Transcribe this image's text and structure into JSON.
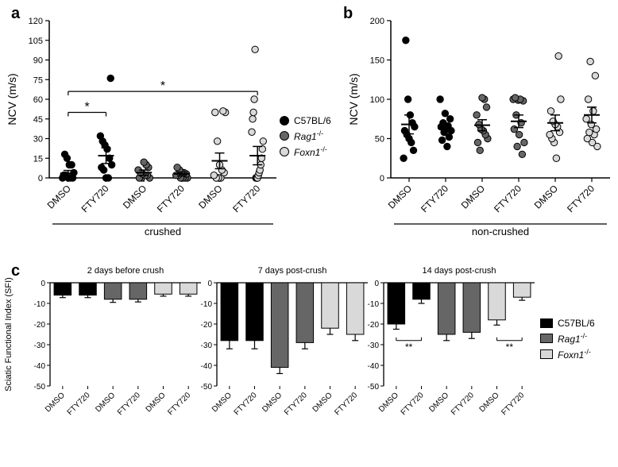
{
  "colors": {
    "axis": "#000000",
    "tick": "#000000",
    "bg": "#ffffff",
    "errorbar": "#000000",
    "sig_line": "#000000"
  },
  "genotype_fill": {
    "C57BL/6": "#000000",
    "Rag1-/-": "#666666",
    "Foxn1-/-": "#d9d9d9"
  },
  "genotype_stroke": {
    "C57BL/6": "#000000",
    "Rag1-/-": "#000000",
    "Foxn1-/-": "#000000"
  },
  "panel_a": {
    "label": "a",
    "type": "scatter",
    "title": "crushed",
    "ylabel": "NCV (m/s)",
    "ylim": [
      0,
      120
    ],
    "ytick_step": 15,
    "x_categories": [
      "DMSO",
      "FTY720",
      "DMSO",
      "FTY720",
      "DMSO",
      "FTY720"
    ],
    "x_genotypes": [
      "C57BL/6",
      "C57BL/6",
      "Rag1-/-",
      "Rag1-/-",
      "Foxn1-/-",
      "Foxn1-/-"
    ],
    "marker_radius": 4.2,
    "jitter_width": 0.3,
    "legend": [
      {
        "label": "C57BL/6",
        "fill_key": "C57BL/6"
      },
      {
        "label": "<i>Rag1</i><sup>-/-</sup>",
        "fill_key": "Rag1-/-"
      },
      {
        "label": "<i>Foxn1</i><sup>-/-</sup>",
        "fill_key": "Foxn1-/-"
      }
    ],
    "series": [
      {
        "group": 0,
        "points": [
          0,
          0,
          0,
          0,
          2,
          2,
          4,
          10,
          10,
          15,
          18
        ],
        "mean": 3.5,
        "sem": 2.2
      },
      {
        "group": 1,
        "points": [
          0,
          0,
          6,
          8,
          10,
          15,
          22,
          25,
          28,
          32,
          76
        ],
        "mean": 17,
        "sem": 6
      },
      {
        "group": 2,
        "points": [
          0,
          0,
          0,
          2,
          2,
          3,
          4,
          6,
          8,
          10,
          12
        ],
        "mean": 4,
        "sem": 2
      },
      {
        "group": 3,
        "points": [
          0,
          0,
          0,
          0,
          2,
          2,
          3,
          4,
          4,
          6,
          8
        ],
        "mean": 3,
        "sem": 1.5
      },
      {
        "group": 4,
        "points": [
          0,
          0,
          0,
          2,
          4,
          6,
          10,
          28,
          50,
          50,
          51
        ],
        "mean": 13,
        "sem": 6
      },
      {
        "group": 5,
        "points": [
          0,
          0,
          0,
          2,
          4,
          6,
          10,
          15,
          22,
          28,
          35,
          45,
          50,
          60,
          98
        ],
        "mean": 17,
        "sem": 7
      }
    ],
    "sig_bars": [
      {
        "from": 0,
        "to": 1,
        "y": 50,
        "label": "*"
      },
      {
        "from": 0,
        "to": 5,
        "y": 66,
        "label": "*"
      }
    ]
  },
  "panel_b": {
    "label": "b",
    "type": "scatter",
    "title": "non-crushed",
    "ylabel": "NCV (m/s)",
    "ylim": [
      0,
      200
    ],
    "ytick_step": 50,
    "x_categories": [
      "DMSO",
      "FTY720",
      "DMSO",
      "FTY720",
      "DMSO",
      "FTY720"
    ],
    "x_genotypes": [
      "C57BL/6",
      "C57BL/6",
      "Rag1-/-",
      "Rag1-/-",
      "Foxn1-/-",
      "Foxn1-/-"
    ],
    "marker_radius": 4.2,
    "jitter_width": 0.3,
    "series": [
      {
        "group": 0,
        "points": [
          25,
          35,
          45,
          50,
          55,
          60,
          65,
          70,
          80,
          100,
          175
        ],
        "mean": 68,
        "sem": 12
      },
      {
        "group": 1,
        "points": [
          40,
          48,
          52,
          58,
          60,
          62,
          65,
          66,
          70,
          75,
          82,
          100
        ],
        "mean": 63,
        "sem": 5
      },
      {
        "group": 2,
        "points": [
          35,
          45,
          50,
          55,
          60,
          62,
          68,
          80,
          90,
          100,
          102
        ],
        "mean": 67,
        "sem": 7
      },
      {
        "group": 3,
        "points": [
          30,
          40,
          45,
          55,
          62,
          70,
          80,
          98,
          99,
          100,
          100,
          102
        ],
        "mean": 72,
        "sem": 8
      },
      {
        "group": 4,
        "points": [
          25,
          45,
          50,
          55,
          58,
          65,
          68,
          72,
          85,
          100,
          155
        ],
        "mean": 70,
        "sem": 10
      },
      {
        "group": 5,
        "points": [
          40,
          45,
          50,
          55,
          58,
          62,
          68,
          75,
          85,
          100,
          130,
          148
        ],
        "mean": 80,
        "sem": 10
      }
    ]
  },
  "panel_c": {
    "label": "c",
    "type": "grouped_bar",
    "ylabel": "Sciatic Functional Index (SFI)",
    "ylim": [
      -50,
      0
    ],
    "ytick_step": 10,
    "x_categories": [
      "DMSO",
      "FTY720",
      "DMSO",
      "FTY720",
      "DMSO",
      "FTY720"
    ],
    "x_genotypes": [
      "C57BL/6",
      "C57BL/6",
      "Rag1-/-",
      "Rag1-/-",
      "Foxn1-/-",
      "Foxn1-/-"
    ],
    "bar_width": 0.68,
    "legend": [
      {
        "label": "C57BL/6",
        "fill_key": "C57BL/6"
      },
      {
        "label": "<i>Rag1</i><sup>-/-</sup>",
        "fill_key": "Rag1-/-"
      },
      {
        "label": "<i>Foxn1</i><sup>-/-</sup>",
        "fill_key": "Foxn1-/-"
      }
    ],
    "subplots": [
      {
        "title": "2 days before crush",
        "bars": [
          {
            "val": -6,
            "sem": 1.2
          },
          {
            "val": -6,
            "sem": 1.2
          },
          {
            "val": -8,
            "sem": 1.5
          },
          {
            "val": -8,
            "sem": 1.3
          },
          {
            "val": -5.5,
            "sem": 1.0
          },
          {
            "val": -5.5,
            "sem": 1.0
          }
        ],
        "sig_bars": []
      },
      {
        "title": "7 days post-crush",
        "bars": [
          {
            "val": -28,
            "sem": 4
          },
          {
            "val": -28,
            "sem": 4
          },
          {
            "val": -41,
            "sem": 3
          },
          {
            "val": -29,
            "sem": 3
          },
          {
            "val": -22,
            "sem": 3
          },
          {
            "val": -25,
            "sem": 3
          }
        ],
        "sig_bars": []
      },
      {
        "title": "14 days post-crush",
        "bars": [
          {
            "val": -20,
            "sem": 2.5
          },
          {
            "val": -8,
            "sem": 2
          },
          {
            "val": -25,
            "sem": 3
          },
          {
            "val": -24,
            "sem": 3
          },
          {
            "val": -18,
            "sem": 2.5
          },
          {
            "val": -7,
            "sem": 1.5
          }
        ],
        "sig_bars": [
          {
            "from": 0,
            "to": 1,
            "y": -28,
            "label": "**"
          },
          {
            "from": 4,
            "to": 5,
            "y": -28,
            "label": "**"
          }
        ]
      }
    ]
  }
}
